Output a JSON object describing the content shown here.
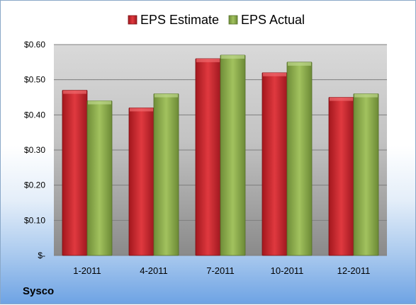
{
  "chart_data": {
    "type": "bar",
    "categories": [
      "1-2011",
      "4-2011",
      "7-2011",
      "10-2011",
      "12-2011"
    ],
    "series": [
      {
        "name": "EPS Estimate",
        "values": [
          0.47,
          0.42,
          0.56,
          0.52,
          0.45
        ],
        "color": "#c0272d"
      },
      {
        "name": "EPS Actual",
        "values": [
          0.44,
          0.46,
          0.57,
          0.55,
          0.46
        ],
        "color": "#8fb04e"
      }
    ],
    "ylim": [
      0,
      0.6
    ],
    "yticks": [
      {
        "value": 0.0,
        "label": "$-"
      },
      {
        "value": 0.1,
        "label": "$0.10"
      },
      {
        "value": 0.2,
        "label": "$0.20"
      },
      {
        "value": 0.3,
        "label": "$0.30"
      },
      {
        "value": 0.4,
        "label": "$0.40"
      },
      {
        "value": 0.5,
        "label": "$0.50"
      },
      {
        "value": 0.6,
        "label": "$0.60"
      }
    ],
    "grid": true,
    "legend_position": "top"
  },
  "company": "Sysco"
}
